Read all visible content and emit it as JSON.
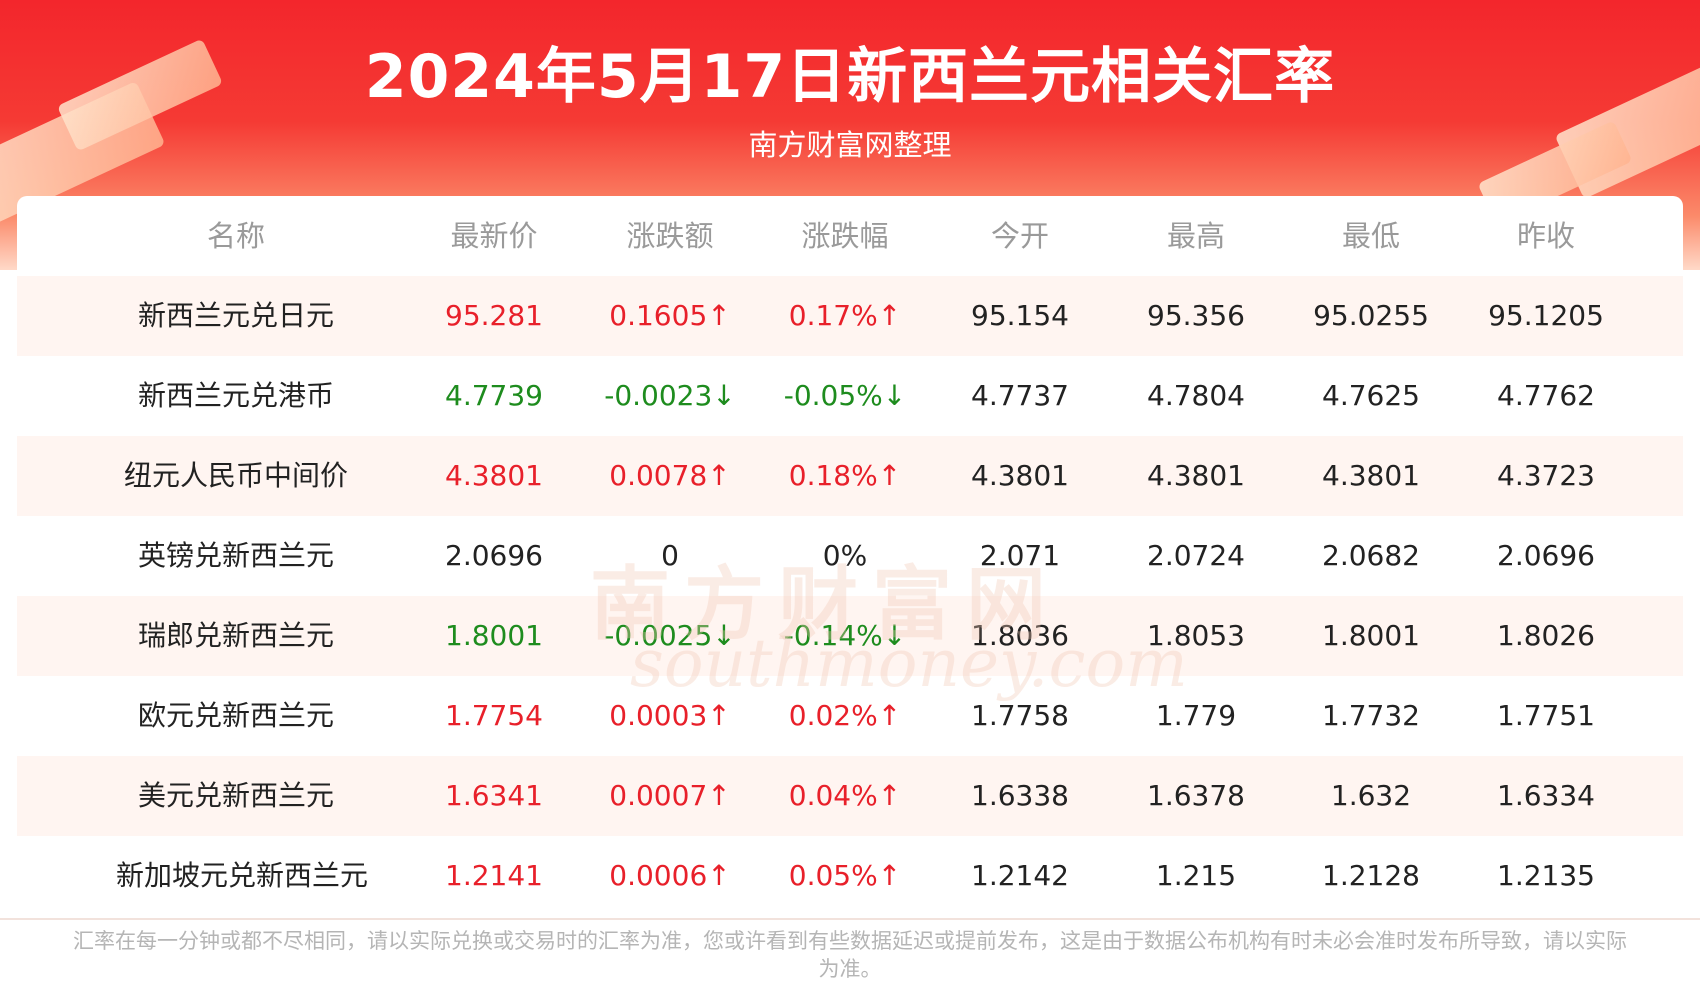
{
  "header": {
    "title": "2024年5月17日新西兰元相关汇率",
    "subtitle": "南方财富网整理"
  },
  "table": {
    "columns": [
      "名称",
      "最新价",
      "涨跌额",
      "涨跌幅",
      "今开",
      "最高",
      "最低",
      "昨收"
    ],
    "rows": [
      {
        "color": "#e8202a",
        "cells": [
          "新西兰元兑日元",
          "95.281",
          "0.1605↑",
          "0.17%↑",
          "95.154",
          "95.356",
          "95.0255",
          "95.1205"
        ]
      },
      {
        "color": "#1e8c1e",
        "cells": [
          "新西兰元兑港币",
          "4.7739",
          "-0.0023↓",
          "-0.05%↓",
          "4.7737",
          "4.7804",
          "4.7625",
          "4.7762"
        ]
      },
      {
        "color": "#e8202a",
        "cells": [
          "纽元人民币中间价",
          "4.3801",
          "0.0078↑",
          "0.18%↑",
          "4.3801",
          "4.3801",
          "4.3801",
          "4.3723"
        ]
      },
      {
        "color": "#222222",
        "cells": [
          "英镑兑新西兰元",
          "2.0696",
          "0",
          "0%",
          "2.071",
          "2.0724",
          "2.0682",
          "2.0696"
        ]
      },
      {
        "color": "#1e8c1e",
        "cells": [
          "瑞郎兑新西兰元",
          "1.8001",
          "-0.0025↓",
          "-0.14%↓",
          "1.8036",
          "1.8053",
          "1.8001",
          "1.8026"
        ]
      },
      {
        "color": "#e8202a",
        "cells": [
          "欧元兑新西兰元",
          "1.7754",
          "0.0003↑",
          "0.02%↑",
          "1.7758",
          "1.779",
          "1.7732",
          "1.7751"
        ]
      },
      {
        "color": "#e8202a",
        "cells": [
          "美元兑新西兰元",
          "1.6341",
          "0.0007↑",
          "0.04%↑",
          "1.6338",
          "1.6378",
          "1.632",
          "1.6334"
        ]
      },
      {
        "color": "#e8202a",
        "cells": [
          "新加坡元兑新西兰元",
          "1.2141",
          "0.0006↑",
          "0.05%↑",
          "1.2142",
          "1.215",
          "1.2128",
          "1.2135"
        ]
      }
    ]
  },
  "watermark": {
    "brand": "南方财富网",
    "domain": "southmoney.com"
  },
  "footer": {
    "note": "汇率在每一分钟或都不尽相同，请以实际兑换或交易时的汇率为准，您或许看到有些数据延迟或提前发布，这是由于数据公布机构有时未必会准时发布所导致，请以实际为准。"
  }
}
